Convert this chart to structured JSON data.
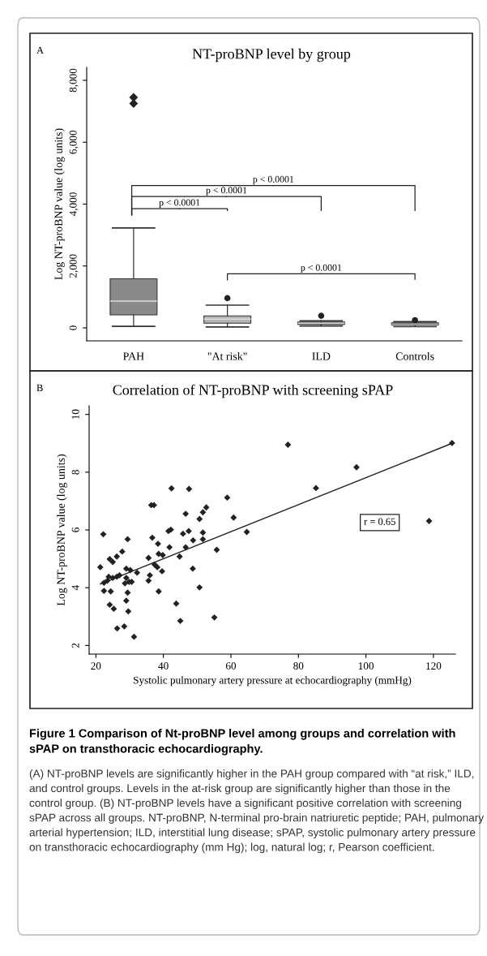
{
  "chart_data": [
    {
      "type": "box",
      "title": "NT-proBNP level by group",
      "ylabel": "Log NT-proBNP value (log units)",
      "categories": [
        "PAH",
        "\"At risk\"",
        "ILD",
        "Controls"
      ],
      "colors": [
        "#8a8a8a",
        "#b4b4b4",
        "#707070",
        "#505050"
      ],
      "boxes": [
        {
          "low": 50,
          "q1": 420,
          "median": 866,
          "q3": 1585,
          "high": 3230,
          "outliers": [
            7250,
            7450
          ]
        },
        {
          "low": 30,
          "q1": 150,
          "median": 280,
          "q3": 385,
          "high": 735,
          "outliers": [
            960
          ]
        },
        {
          "low": 60,
          "q1": 110,
          "median": 150,
          "q3": 190,
          "high": 230,
          "outliers": [
            390
          ]
        },
        {
          "low": 40,
          "q1": 90,
          "median": 120,
          "q3": 160,
          "high": 200,
          "outliers": [
            250
          ]
        }
      ],
      "ylim": [
        -420,
        8420
      ],
      "yticks": [
        0,
        {
          "value": 2000,
          "label": "2,000"
        },
        {
          "value": 4000,
          "label": "4,000"
        },
        {
          "value": 6000,
          "label": "6,000"
        },
        {
          "value": 8000,
          "label": "8,000"
        }
      ],
      "annotations": [
        "A",
        "p < 0.0001",
        "p < 0.0001",
        "p < 0.0001",
        "p < 0.0001"
      ]
    },
    {
      "type": "scatter",
      "title": "Correlation of NT-proBNP with screening sPAP",
      "xlabel": "Systolic pulmonary artery pressure at echocardiography (mmHg)",
      "ylabel": "Log NT-proBNP value (log units)",
      "series": [
        {
          "type": "scatter",
          "color": "#222222",
          "marker": "diamond",
          "x": [
            21.3,
            22.2,
            22.4,
            22.4,
            24.1,
            25.3,
            26.3,
            28.4,
            24.1,
            25.0,
            26.2,
            27.8,
            23.8,
            25.0,
            26.2,
            27.0,
            23.4,
            24.4,
            29.4,
            29.0,
            30.2,
            29.0,
            29.8,
            28.6,
            30.6,
            29.4,
            29.0,
            29.6,
            32.2,
            35.6,
            35.6,
            36.0,
            36.4,
            37.2,
            36.7,
            37.4,
            38.2,
            38.6,
            39.6,
            38.6,
            38.4,
            39.8,
            41.5,
            41.8,
            42.2,
            42.4,
            43.8,
            44.8,
            45.0,
            46.6,
            45.8,
            47.5,
            46.6,
            47.6,
            48.7,
            48.8,
            50.7,
            50.7,
            51.7,
            51.7,
            51.7,
            52.7,
            55.1,
            55.8,
            58.9,
            60.8,
            64.7,
            31.3,
            76.9,
            85.2,
            97.2,
            118.7,
            125.5
          ],
          "values": [
            4.71,
            5.85,
            4.17,
            3.89,
            3.41,
            3.27,
            2.59,
            2.66,
            4.99,
            4.89,
            5.08,
            5.25,
            4.38,
            4.34,
            4.38,
            4.43,
            4.24,
            3.87,
            5.68,
            4.66,
            4.61,
            4.34,
            4.2,
            4.15,
            4.2,
            3.83,
            3.55,
            3.18,
            4.52,
            5.03,
            4.24,
            4.43,
            6.86,
            6.86,
            5.73,
            4.8,
            4.71,
            3.87,
            4.57,
            5.17,
            5.52,
            5.13,
            5.96,
            5.4,
            6.01,
            7.44,
            3.45,
            5.08,
            2.85,
            6.56,
            5.87,
            5.96,
            5.4,
            7.42,
            4.66,
            5.64,
            4.01,
            6.38,
            5.91,
            5.68,
            6.61,
            6.78,
            2.97,
            5.31,
            7.12,
            6.43,
            5.93,
            2.3,
            8.95,
            7.45,
            8.17,
            6.31,
            9.01
          ]
        },
        {
          "type": "line",
          "color": "#222222",
          "marker": "none",
          "x": [
            21.3,
            125.5
          ],
          "values": [
            4.13,
            9.0
          ]
        }
      ],
      "xlim": [
        18,
        126.5
      ],
      "ylim": [
        1.7,
        10.3
      ],
      "xticks": [
        20,
        40,
        60,
        80,
        100,
        120
      ],
      "yticks": [
        2,
        4,
        6,
        8,
        10
      ],
      "annotations": [
        "B",
        "r = 0.65",
        "Figure 1 Comparison of Nt-proBNP level among groups and correlation with sPAP on transthoracic echocardiography.",
        "(A) NT-proBNP levels are significantly higher in the PAH group compared with “at risk,” ILD, and control groups. Levels in the at-risk group are significantly higher than those in the control group. (B) NT-proBNP levels have a significant positive correlation with screening sPAP across all groups. NT-proBNP, N-terminal pro-brain natriuretic peptide; PAH, pulmonary arterial hypertension; ILD, interstitial lung disease; sPAP, systolic pulmonary artery pressure on transthoracic echocardiography (mm Hg); log, natural log; r, Pearson coefficient."
      ]
    }
  ]
}
